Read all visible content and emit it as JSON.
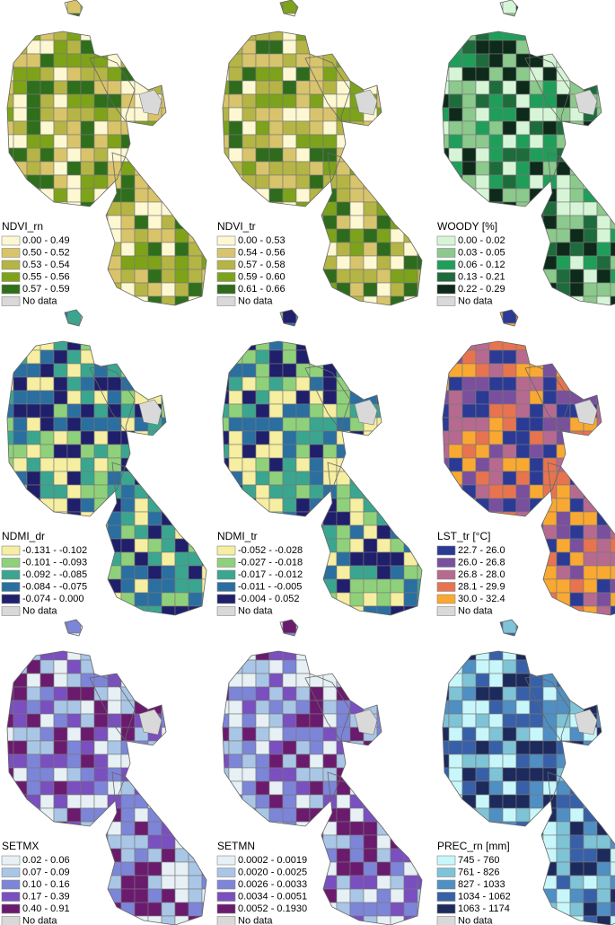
{
  "panels": [
    {
      "title": "NDVI_rn",
      "no_data": "No data",
      "classes": [
        {
          "label": "0.00 - 0.49",
          "color": "#fdf8d2"
        },
        {
          "label": "0.50 - 0.52",
          "color": "#d9c46a"
        },
        {
          "label": "0.53 - 0.54",
          "color": "#b5b545"
        },
        {
          "label": "0.55 - 0.56",
          "color": "#7ea318"
        },
        {
          "label": "0.57 - 0.59",
          "color": "#2f6e1a"
        }
      ]
    },
    {
      "title": "NDVI_tr",
      "no_data": "No data",
      "classes": [
        {
          "label": "0.00 - 0.53",
          "color": "#fdf8d2"
        },
        {
          "label": "0.54 - 0.56",
          "color": "#d8c46c"
        },
        {
          "label": "0.57 - 0.58",
          "color": "#b4b544"
        },
        {
          "label": "0.59 - 0.60",
          "color": "#7da21b"
        },
        {
          "label": "0.61 - 0.66",
          "color": "#2e6b1c"
        }
      ]
    },
    {
      "title": "WOODY [%]",
      "no_data": "No data",
      "classes": [
        {
          "label": "0.00 - 0.02",
          "color": "#d6f5d6"
        },
        {
          "label": "0.03 - 0.05",
          "color": "#8cc98c"
        },
        {
          "label": "0.06 - 0.12",
          "color": "#1f9e5a"
        },
        {
          "label": "0.13 - 0.21",
          "color": "#1e6b3c"
        },
        {
          "label": "0.22 - 0.29",
          "color": "#0d2a1a"
        }
      ]
    },
    {
      "title": "NDMI_dr",
      "no_data": "No data",
      "classes": [
        {
          "label": "-0.131 - -0.102",
          "color": "#f6eea0"
        },
        {
          "label": "-0.101 - -0.093",
          "color": "#8fd17a"
        },
        {
          "label": "-0.092 - -0.085",
          "color": "#3aa68f"
        },
        {
          "label": "-0.084 - -0.075",
          "color": "#2a6fa0"
        },
        {
          "label": "-0.074 - 0.000",
          "color": "#1f1f6b"
        }
      ]
    },
    {
      "title": "NDMI_tr",
      "no_data": "No data",
      "classes": [
        {
          "label": "-0.052 - -0.028",
          "color": "#f6eea0"
        },
        {
          "label": "-0.027 - -0.018",
          "color": "#8fd17a"
        },
        {
          "label": "-0.017 - -0.012",
          "color": "#3aa68f"
        },
        {
          "label": "-0.011 - -0.005",
          "color": "#2a6fa0"
        },
        {
          "label": "-0.004 - 0.052",
          "color": "#1f1f6b"
        }
      ]
    },
    {
      "title": "LST_tr [°C]",
      "no_data": "No data",
      "classes": [
        {
          "label": "22.7 - 26.0",
          "color": "#2b3a94"
        },
        {
          "label": "26.0 - 26.8",
          "color": "#7a4f9e"
        },
        {
          "label": "26.8 - 28.0",
          "color": "#b66a8f"
        },
        {
          "label": "28.1 - 29.9",
          "color": "#e7744f"
        },
        {
          "label": "30.0 - 32.4",
          "color": "#f9a832"
        }
      ]
    },
    {
      "title": "SETMX",
      "no_data": "No data",
      "classes": [
        {
          "label": "0.02 - 0.06",
          "color": "#e6f0f5"
        },
        {
          "label": "0.07 - 0.09",
          "color": "#a9c6e6"
        },
        {
          "label": "0.10 - 0.16",
          "color": "#7d85d9"
        },
        {
          "label": "0.17 - 0.39",
          "color": "#7a4fbf"
        },
        {
          "label": "0.40 - 0.91",
          "color": "#6a1b6e"
        }
      ]
    },
    {
      "title": "SETMN",
      "no_data": "No data",
      "classes": [
        {
          "label": "0.0002 - 0.0019",
          "color": "#e6f0f5"
        },
        {
          "label": "0.0020 - 0.0025",
          "color": "#a9c6e6"
        },
        {
          "label": "0.0026 - 0.0033",
          "color": "#7d85d9"
        },
        {
          "label": "0.0034 - 0.0051",
          "color": "#7a4fbf"
        },
        {
          "label": "0.0052 - 0.1930",
          "color": "#6a1b6e"
        }
      ]
    },
    {
      "title": "PREC_rn [mm]",
      "no_data": "No data",
      "classes": [
        {
          "label": "745 - 760",
          "color": "#c7f7fb"
        },
        {
          "label": "761 - 826",
          "color": "#7fc3d6"
        },
        {
          "label": "827 - 1033",
          "color": "#4f8fc3"
        },
        {
          "label": "1034 - 1062",
          "color": "#3760a8"
        },
        {
          "label": "1063 - 1174",
          "color": "#1d2a5c"
        }
      ]
    }
  ]
}
